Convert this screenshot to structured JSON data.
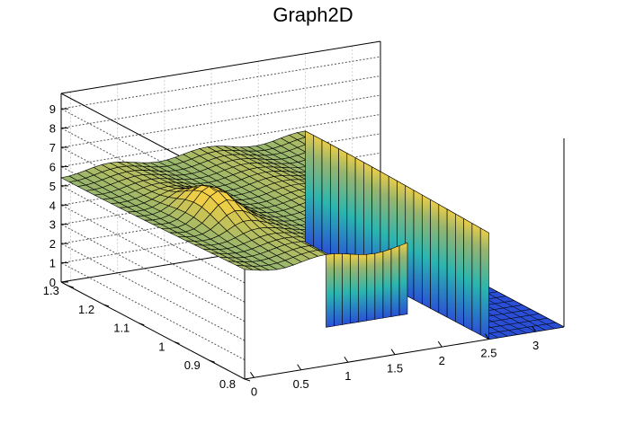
{
  "chart_data": {
    "type": "surface3d",
    "title": "Graph2D",
    "xlabel": "",
    "ylabel": "",
    "zlabel": "",
    "xlim": [
      -0.1,
      3.3
    ],
    "ylim": [
      0.8,
      1.32
    ],
    "zlim": [
      0,
      9.8
    ],
    "grid": true,
    "legend": "none",
    "x_ticks": [
      "0",
      "0.5",
      "1",
      "1.5",
      "2",
      "2.5",
      "3"
    ],
    "y_ticks": [
      "0.8",
      "0.9",
      "1",
      "1.1",
      "1.2",
      "1.3"
    ],
    "z_ticks": [
      "0",
      "1",
      "2",
      "3",
      "4",
      "5",
      "6",
      "7",
      "8",
      "9"
    ],
    "x_tick_values": [
      0,
      0.5,
      1,
      1.5,
      2,
      2.5,
      3
    ],
    "y_tick_values": [
      0.8,
      0.9,
      1.0,
      1.1,
      1.2,
      1.3
    ],
    "z_tick_values": [
      0,
      1,
      2,
      3,
      4,
      5,
      6,
      7,
      8,
      9
    ],
    "surface": {
      "plateau_height": 5.6,
      "bump": {
        "x": 0.5,
        "y": 1.05,
        "height": 6.9
      },
      "cliff_x": 2.5,
      "floor_height": 0,
      "wall_bottom": 2.0,
      "wall_x_range": [
        0.7,
        1.65
      ]
    },
    "colors": {
      "low": "#2a4fd6",
      "mid": "#2ab5b0",
      "plateau": "#97b56e",
      "high": "#f2cf44"
    }
  }
}
